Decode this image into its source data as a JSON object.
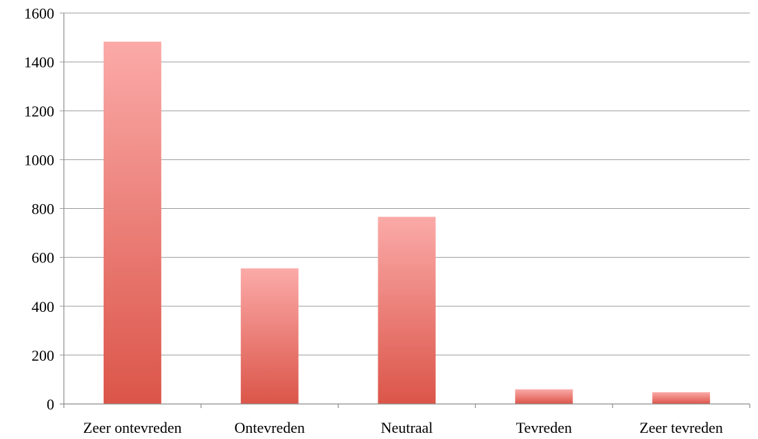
{
  "chart_data": {
    "type": "bar",
    "categories": [
      "Zeer ontevreden",
      "Ontevreden",
      "Neutraal",
      "Tevreden",
      "Zeer tevreden"
    ],
    "values": [
      1483,
      555,
      766,
      60,
      48
    ],
    "title": "",
    "xlabel": "",
    "ylabel": "",
    "ylim": [
      0,
      1600
    ],
    "yticks": [
      "0",
      "200",
      "400",
      "600",
      "800",
      "1000",
      "1200",
      "1400",
      "1600"
    ],
    "grid": true,
    "legend": "none",
    "colors": {
      "bar_top": "#fbaaa8",
      "bar_bottom": "#db5549",
      "grid": "#9a9a9a",
      "axis": "#8c8c8c",
      "text": "#000000"
    }
  }
}
